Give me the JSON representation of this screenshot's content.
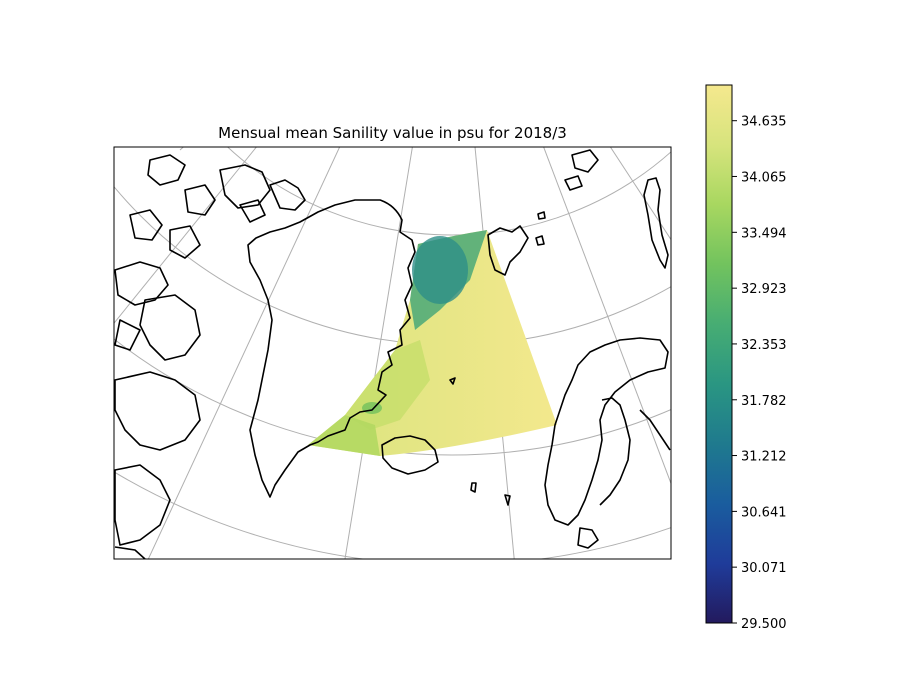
{
  "title": "Mensual mean Sanility value in psu for 2018/3",
  "colorbar": {
    "colormap": "viridis-yellow (haline-like)",
    "ticks": [
      {
        "value": 29.5,
        "label": "29.500"
      },
      {
        "value": 30.071,
        "label": "30.071"
      },
      {
        "value": 30.641,
        "label": "30.641"
      },
      {
        "value": 31.212,
        "label": "31.212"
      },
      {
        "value": 31.782,
        "label": "31.782"
      },
      {
        "value": 32.353,
        "label": "32.353"
      },
      {
        "value": 32.923,
        "label": "32.923"
      },
      {
        "value": 33.494,
        "label": "33.494"
      },
      {
        "value": 34.065,
        "label": "34.065"
      },
      {
        "value": 34.635,
        "label": "34.635"
      }
    ],
    "min": 29.5,
    "max": 35.0,
    "colors": [
      "#231a5e",
      "#1f3c9a",
      "#1a5d9e",
      "#1f7a8e",
      "#2a9682",
      "#47ad73",
      "#72c35e",
      "#a8d760",
      "#d7e47d",
      "#f5e88e"
    ]
  },
  "map": {
    "projection": "polar stereographic",
    "region": "Nordic Seas / Greenland Sea",
    "coastline_color": "#000000",
    "gridline_color": "#b0b0b0"
  }
}
